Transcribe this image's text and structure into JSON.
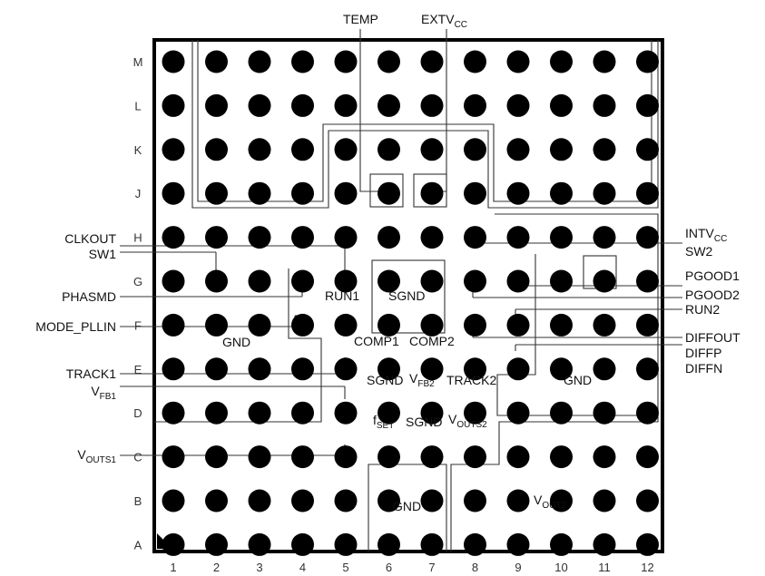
{
  "columns": [
    "1",
    "2",
    "3",
    "4",
    "5",
    "6",
    "7",
    "8",
    "9",
    "10",
    "11",
    "12"
  ],
  "rows": [
    "M",
    "L",
    "K",
    "J",
    "H",
    "G",
    "F",
    "E",
    "D",
    "C",
    "B",
    "A"
  ],
  "left_labels": {
    "clkout": "CLKOUT",
    "sw1": "SW1",
    "phasmd": "PHASMD",
    "mode_pllin": "MODE_PLLIN",
    "track1": "TRACK1",
    "vfb1_main": "V",
    "vfb1_sub": "FB1",
    "vouts1_main": "V",
    "vouts1_sub": "OUTS1"
  },
  "right_labels": {
    "intvcc_main": "INTV",
    "intvcc_sub": "CC",
    "sw2": "SW2",
    "pgood1": "PGOOD1",
    "pgood2": "PGOOD2",
    "run2": "RUN2",
    "diffout": "DIFFOUT",
    "diffp": "DIFFP",
    "diffn": "DIFFN"
  },
  "top_labels": {
    "temp": "TEMP",
    "extvcc_main": "EXTV",
    "extvcc_sub": "CC"
  },
  "inner_labels": {
    "run1": "RUN1",
    "sgnd_center": "SGND",
    "gnd_left": "GND",
    "comp1": "COMP1",
    "comp2": "COMP2",
    "sgnd_lower": "SGND",
    "vfb2_main": "V",
    "vfb2_sub": "FB2",
    "track2": "TRACK2",
    "gnd_right": "GND",
    "fset_main": "f",
    "fset_sub": "SET",
    "sgnd_bottom": "SGND",
    "vouts2_main": "V",
    "vouts2_sub": "OUTS2",
    "gnd_bottom": "GND",
    "vout2_main": "V",
    "vout2_sub": "OUT2"
  }
}
